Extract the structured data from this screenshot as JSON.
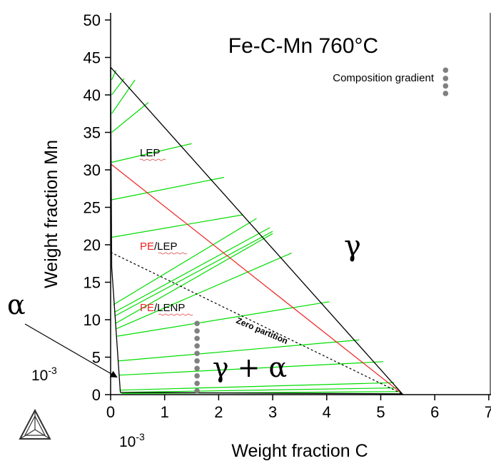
{
  "chart_data": {
    "type": "scatter",
    "title": "Fe-C-Mn 760°C",
    "xlabel": "Weight fraction C",
    "ylabel": "Weight fraction Mn",
    "x_multiplier_label": "10-3",
    "y_multiplier_label": "10-3",
    "xlim": [
      0,
      7
    ],
    "ylim": [
      0,
      50
    ],
    "x_ticks": [
      0,
      1,
      2,
      3,
      4,
      5,
      6,
      7
    ],
    "y_ticks": [
      0,
      5,
      10,
      15,
      20,
      25,
      30,
      35,
      40,
      45,
      50
    ],
    "grid": false,
    "colors": {
      "boundary": "#000000",
      "tieline": "#00dd00",
      "pe_line": "#ee2222",
      "zero_partition": "#000000",
      "gradient_dots": "#808080"
    },
    "phase_boundary": [
      [
        0,
        43.7
      ],
      [
        5.4,
        0.1
      ],
      [
        0.18,
        0.3
      ],
      [
        0.02,
        17.0
      ],
      [
        0,
        43.7
      ]
    ],
    "tie_lines": [
      [
        [
          0.02,
          42.0
        ],
        [
          0.1,
          43.3
        ]
      ],
      [
        [
          0.02,
          40.0
        ],
        [
          0.25,
          42.2
        ]
      ],
      [
        [
          0.02,
          37.5
        ],
        [
          0.45,
          42.0
        ]
      ],
      [
        [
          0.02,
          35.0
        ],
        [
          0.7,
          39.0
        ]
      ],
      [
        [
          0.02,
          31.0
        ],
        [
          1.5,
          33.5
        ]
      ],
      [
        [
          0.02,
          26.0
        ],
        [
          2.1,
          29.0
        ]
      ],
      [
        [
          0.02,
          21.0
        ],
        [
          2.45,
          24.0
        ]
      ],
      [
        [
          0.05,
          12.0
        ],
        [
          2.7,
          23.5
        ]
      ],
      [
        [
          0.07,
          11.0
        ],
        [
          2.95,
          22.3
        ]
      ],
      [
        [
          0.08,
          10.5
        ],
        [
          3.0,
          21.8
        ]
      ],
      [
        [
          0.09,
          9.5
        ],
        [
          3.0,
          21.5
        ]
      ],
      [
        [
          0.11,
          8.8
        ],
        [
          3.35,
          18.9
        ]
      ],
      [
        [
          0.12,
          7.8
        ],
        [
          4.05,
          12.4
        ]
      ],
      [
        [
          0.15,
          4.5
        ],
        [
          4.6,
          7.3
        ]
      ],
      [
        [
          0.16,
          2.6
        ],
        [
          5.05,
          4.4
        ]
      ],
      [
        [
          0.17,
          0.6
        ],
        [
          5.25,
          1.6
        ]
      ],
      [
        [
          0.18,
          0.3
        ],
        [
          5.3,
          0.9
        ]
      ],
      [
        [
          0.2,
          0.15
        ],
        [
          5.35,
          0.4
        ]
      ]
    ],
    "pe_line": [
      [
        0,
        30.8
      ],
      [
        5.4,
        0.1
      ]
    ],
    "zero_partition": [
      [
        0,
        19.0
      ],
      [
        5.4,
        0.1
      ]
    ],
    "composition_gradient_C": 1.6,
    "composition_gradient_Mn": [
      0.5,
      1.5,
      2.5,
      3.5,
      4.5,
      5.5,
      6.5,
      7.5,
      8.5,
      9.5
    ],
    "legend_gradient_dots": [
      [
        6.2,
        43.3
      ],
      [
        6.2,
        42.2
      ],
      [
        6.2,
        41.2
      ],
      [
        6.2,
        40.2
      ]
    ],
    "legend_gradient_label": "Composition gradient",
    "labels": {
      "gamma": "γ",
      "gamma_alpha": "γ + α",
      "alpha": "α",
      "lep": "LEP",
      "pe_lep_red": "PE",
      "pe_lep_black": "/LEP",
      "pe_lenp_red": "PE",
      "pe_lenp_black": "/LENP",
      "zero_partition": "Zero partition"
    },
    "corner_axis_labels": {
      "x": "10-3",
      "y": "10-3"
    }
  }
}
